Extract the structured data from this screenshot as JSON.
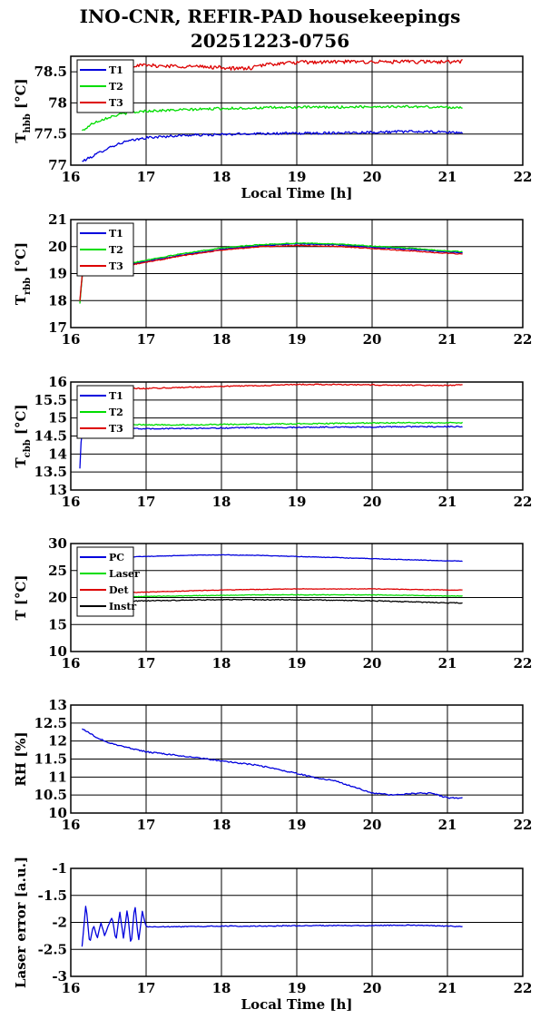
{
  "title": {
    "line1": "INO-CNR, REFIR-PAD housekeepings",
    "line2": "20251223-0756"
  },
  "chart_data": [
    {
      "type": "line",
      "ylabel_main": "T",
      "ylabel_sub": "hbb",
      "ylabel_unit": " [°C]",
      "xlabel": "Local Time [h]",
      "xlim": [
        16,
        22
      ],
      "ylim": [
        77,
        78.75
      ],
      "xticks": [
        "16",
        "17",
        "18",
        "19",
        "20",
        "21",
        "22"
      ],
      "yticks": [
        {
          "v": 77,
          "label": "77"
        },
        {
          "v": 77.5,
          "label": "77.5"
        },
        {
          "v": 78,
          "label": "78"
        },
        {
          "v": 78.5,
          "label": "78.5"
        }
      ],
      "grid": true,
      "legend_position": "top-left",
      "series": [
        {
          "name": "T1",
          "color": "#0000dd",
          "noise": 0.02,
          "x": [
            16.15,
            16.3,
            16.5,
            16.7,
            17.0,
            17.5,
            18.0,
            18.5,
            19.0,
            19.5,
            20.0,
            20.5,
            21.0,
            21.2
          ],
          "y": [
            77.06,
            77.15,
            77.28,
            77.37,
            77.44,
            77.48,
            77.49,
            77.51,
            77.51,
            77.52,
            77.53,
            77.54,
            77.53,
            77.52
          ]
        },
        {
          "name": "T2",
          "color": "#00dd00",
          "noise": 0.02,
          "x": [
            16.15,
            16.3,
            16.5,
            16.7,
            17.0,
            17.5,
            18.0,
            18.5,
            19.0,
            19.5,
            20.0,
            20.5,
            21.0,
            21.2
          ],
          "y": [
            77.55,
            77.68,
            77.77,
            77.83,
            77.87,
            77.89,
            77.91,
            77.92,
            77.93,
            77.93,
            77.94,
            77.94,
            77.93,
            77.93
          ]
        },
        {
          "name": "T3",
          "color": "#dd0000",
          "noise": 0.03,
          "x": [
            16.15,
            16.5,
            17.0,
            17.5,
            18.0,
            18.2,
            18.4,
            18.6,
            19.0,
            19.5,
            20.0,
            20.5,
            21.0,
            21.2
          ],
          "y": [
            78.62,
            78.61,
            78.6,
            78.59,
            78.57,
            78.55,
            78.56,
            78.62,
            78.65,
            78.66,
            78.66,
            78.66,
            78.66,
            78.67
          ]
        }
      ]
    },
    {
      "type": "line",
      "ylabel_main": "T",
      "ylabel_sub": "rbb",
      "ylabel_unit": " [°C]",
      "xlabel": "",
      "xlim": [
        16,
        22
      ],
      "ylim": [
        17,
        21
      ],
      "xticks": [
        "16",
        "17",
        "18",
        "19",
        "20",
        "21",
        "22"
      ],
      "yticks": [
        {
          "v": 17,
          "label": "17"
        },
        {
          "v": 18,
          "label": "18"
        },
        {
          "v": 19,
          "label": "19"
        },
        {
          "v": 20,
          "label": "20"
        },
        {
          "v": 21,
          "label": "21"
        }
      ],
      "grid": true,
      "legend_position": "top-left",
      "series": [
        {
          "name": "T1",
          "color": "#0000dd",
          "noise": 0.015,
          "x": [
            16.12,
            16.15,
            16.2,
            16.5,
            17.0,
            17.5,
            18.0,
            18.5,
            19.0,
            19.5,
            20.0,
            20.5,
            21.0,
            21.2
          ],
          "y": [
            17.95,
            18.9,
            19.1,
            19.2,
            19.45,
            19.7,
            19.9,
            20.03,
            20.1,
            20.07,
            19.98,
            19.9,
            19.8,
            19.77
          ]
        },
        {
          "name": "T2",
          "color": "#00dd00",
          "noise": 0.015,
          "x": [
            16.12,
            16.15,
            16.2,
            16.5,
            17.0,
            17.5,
            18.0,
            18.5,
            19.0,
            19.5,
            20.0,
            20.5,
            21.0,
            21.2
          ],
          "y": [
            17.9,
            18.9,
            19.12,
            19.22,
            19.5,
            19.75,
            19.95,
            20.07,
            20.13,
            20.1,
            20.02,
            19.94,
            19.84,
            19.81
          ]
        },
        {
          "name": "T3",
          "color": "#dd0000",
          "noise": 0.015,
          "x": [
            16.12,
            16.15,
            16.2,
            16.5,
            17.0,
            17.5,
            18.0,
            18.5,
            19.0,
            19.5,
            20.0,
            20.5,
            21.0,
            21.2
          ],
          "y": [
            18.0,
            18.95,
            19.1,
            19.18,
            19.42,
            19.67,
            19.87,
            19.99,
            20.04,
            20.01,
            19.93,
            19.84,
            19.75,
            19.72
          ]
        }
      ]
    },
    {
      "type": "line",
      "ylabel_main": "T",
      "ylabel_sub": "cbb",
      "ylabel_unit": " [°C]",
      "xlabel": "",
      "xlim": [
        16,
        22
      ],
      "ylim": [
        13,
        16
      ],
      "xticks": [
        "16",
        "17",
        "18",
        "19",
        "20",
        "21",
        "22"
      ],
      "yticks": [
        {
          "v": 13,
          "label": "13"
        },
        {
          "v": 13.5,
          "label": "13.5"
        },
        {
          "v": 14,
          "label": "14"
        },
        {
          "v": 14.5,
          "label": "14.5"
        },
        {
          "v": 15,
          "label": "15"
        },
        {
          "v": 15.5,
          "label": "15.5"
        },
        {
          "v": 16,
          "label": "16"
        }
      ],
      "grid": true,
      "legend_position": "top-left",
      "series": [
        {
          "name": "T1",
          "color": "#0000dd",
          "noise": 0.015,
          "x": [
            16.12,
            16.13,
            16.15,
            16.2,
            16.5,
            17.0,
            17.5,
            18.0,
            18.5,
            19.0,
            19.5,
            20.0,
            20.5,
            21.0,
            21.2
          ],
          "y": [
            13.6,
            14.2,
            14.6,
            14.7,
            14.72,
            14.7,
            14.71,
            14.72,
            14.73,
            14.74,
            14.75,
            14.75,
            14.76,
            14.76,
            14.76
          ]
        },
        {
          "name": "T2",
          "color": "#00dd00",
          "noise": 0.015,
          "x": [
            16.15,
            16.5,
            17.0,
            17.5,
            18.0,
            18.5,
            19.0,
            19.5,
            20.0,
            20.5,
            21.0,
            21.2
          ],
          "y": [
            14.85,
            14.83,
            14.81,
            14.81,
            14.82,
            14.83,
            14.84,
            14.85,
            14.86,
            14.87,
            14.87,
            14.87
          ]
        },
        {
          "name": "T3",
          "color": "#dd0000",
          "noise": 0.015,
          "x": [
            16.15,
            16.5,
            17.0,
            17.5,
            18.0,
            18.5,
            19.0,
            19.5,
            20.0,
            20.5,
            21.0,
            21.2
          ],
          "y": [
            15.85,
            15.83,
            15.82,
            15.85,
            15.88,
            15.9,
            15.93,
            15.93,
            15.92,
            15.91,
            15.91,
            15.92
          ]
        }
      ]
    },
    {
      "type": "line",
      "ylabel_main": "T [°C]",
      "ylabel_sub": "",
      "ylabel_unit": "",
      "xlabel": "",
      "xlim": [
        16,
        22
      ],
      "ylim": [
        10,
        30
      ],
      "xticks": [
        "16",
        "17",
        "18",
        "19",
        "20",
        "21",
        "22"
      ],
      "yticks": [
        {
          "v": 10,
          "label": "10"
        },
        {
          "v": 15,
          "label": "15"
        },
        {
          "v": 20,
          "label": "20"
        },
        {
          "v": 25,
          "label": "25"
        },
        {
          "v": 30,
          "label": "30"
        }
      ],
      "grid": true,
      "legend_position": "top-left",
      "series": [
        {
          "name": "PC",
          "color": "#0000dd",
          "noise": 0.05,
          "x": [
            16.15,
            16.5,
            17.0,
            17.5,
            18.0,
            18.5,
            19.0,
            19.5,
            20.0,
            20.5,
            21.0,
            21.2
          ],
          "y": [
            27.3,
            27.4,
            27.6,
            27.8,
            27.9,
            27.8,
            27.6,
            27.4,
            27.2,
            27.0,
            26.8,
            26.75
          ]
        },
        {
          "name": "Laser",
          "color": "#00dd00",
          "noise": 0.05,
          "x": [
            16.15,
            16.5,
            17.0,
            17.5,
            18.0,
            18.5,
            19.0,
            19.5,
            20.0,
            20.5,
            21.0,
            21.2
          ],
          "y": [
            20.1,
            20.1,
            20.2,
            20.3,
            20.4,
            20.5,
            20.5,
            20.5,
            20.5,
            20.4,
            20.3,
            20.3
          ]
        },
        {
          "name": "Det",
          "color": "#dd0000",
          "noise": 0.05,
          "x": [
            16.15,
            16.5,
            17.0,
            17.5,
            18.0,
            18.5,
            19.0,
            19.5,
            20.0,
            20.5,
            21.0,
            21.2
          ],
          "y": [
            20.7,
            20.8,
            21.0,
            21.2,
            21.4,
            21.5,
            21.6,
            21.6,
            21.6,
            21.5,
            21.4,
            21.4
          ]
        },
        {
          "name": "Instr",
          "color": "#000000",
          "noise": 0.08,
          "x": [
            16.15,
            16.5,
            17.0,
            17.5,
            18.0,
            18.5,
            19.0,
            19.5,
            20.0,
            20.5,
            21.0,
            21.2
          ],
          "y": [
            19.3,
            19.3,
            19.4,
            19.5,
            19.6,
            19.6,
            19.6,
            19.5,
            19.4,
            19.2,
            19.0,
            19.0
          ]
        }
      ]
    },
    {
      "type": "line",
      "ylabel_main": "RH [%]",
      "ylabel_sub": "",
      "ylabel_unit": "",
      "xlabel": "",
      "xlim": [
        16,
        22
      ],
      "ylim": [
        10,
        13
      ],
      "xticks": [
        "16",
        "17",
        "18",
        "19",
        "20",
        "21",
        "22"
      ],
      "yticks": [
        {
          "v": 10,
          "label": "10"
        },
        {
          "v": 10.5,
          "label": "10.5"
        },
        {
          "v": 11,
          "label": "11"
        },
        {
          "v": 11.5,
          "label": "11.5"
        },
        {
          "v": 12,
          "label": "12"
        },
        {
          "v": 12.5,
          "label": "12.5"
        },
        {
          "v": 13,
          "label": "13"
        }
      ],
      "grid": true,
      "legend_position": "none",
      "series": [
        {
          "name": "",
          "color": "#0000dd",
          "noise": 0.018,
          "x": [
            16.15,
            16.3,
            16.5,
            17.0,
            17.5,
            18.0,
            18.5,
            19.0,
            19.2,
            19.5,
            19.8,
            20.0,
            20.3,
            20.6,
            20.8,
            21.0,
            21.2
          ],
          "y": [
            12.35,
            12.15,
            11.95,
            11.7,
            11.58,
            11.45,
            11.32,
            11.1,
            11.0,
            10.9,
            10.7,
            10.55,
            10.5,
            10.55,
            10.55,
            10.42,
            10.42
          ]
        }
      ]
    },
    {
      "type": "line",
      "ylabel_main": "Laser error [a.u.]",
      "ylabel_sub": "",
      "ylabel_unit": "",
      "xlabel": "Local Time [h]",
      "xlim": [
        16,
        22
      ],
      "ylim": [
        -3,
        -1
      ],
      "xticks": [
        "16",
        "17",
        "18",
        "19",
        "20",
        "21",
        "22"
      ],
      "yticks": [
        {
          "v": -3,
          "label": "-3"
        },
        {
          "v": -2.5,
          "label": "-2.5"
        },
        {
          "v": -2,
          "label": "-2"
        },
        {
          "v": -1.5,
          "label": "-1.5"
        },
        {
          "v": -1,
          "label": "-1"
        }
      ],
      "grid": true,
      "legend_position": "none",
      "series": [
        {
          "name": "",
          "color": "#0000dd",
          "noise": 0.008,
          "x": [
            16.15,
            16.2,
            16.25,
            16.3,
            16.35,
            16.4,
            16.45,
            16.5,
            16.55,
            16.6,
            16.65,
            16.7,
            16.75,
            16.8,
            16.85,
            16.9,
            16.95,
            17.0,
            17.5,
            18.0,
            18.5,
            19.0,
            19.5,
            20.0,
            20.5,
            21.0,
            21.2
          ],
          "y": [
            -2.45,
            -1.65,
            -2.4,
            -2.05,
            -2.3,
            -2.0,
            -2.25,
            -2.05,
            -1.9,
            -2.35,
            -1.8,
            -2.3,
            -1.75,
            -2.45,
            -1.65,
            -2.35,
            -1.8,
            -2.08,
            -2.08,
            -2.07,
            -2.07,
            -2.06,
            -2.06,
            -2.06,
            -2.05,
            -2.07,
            -2.08
          ]
        }
      ]
    }
  ]
}
